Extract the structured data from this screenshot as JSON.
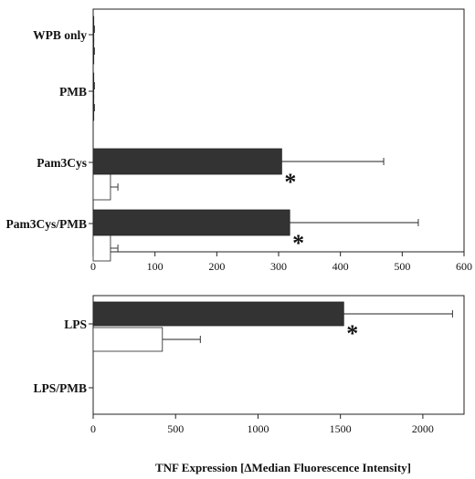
{
  "chart_data": [
    {
      "type": "bar",
      "orientation": "horizontal",
      "categories": [
        "WPB only",
        "PMB",
        "Pam3Cys",
        "Pam3Cys/PMB"
      ],
      "series": [
        {
          "color": "#333333",
          "values": [
            1,
            1,
            305,
            318
          ],
          "errors": [
            1,
            1,
            165,
            208
          ]
        },
        {
          "color": "#ffffff",
          "values": [
            1,
            1,
            28,
            28
          ],
          "errors": [
            1,
            1,
            12,
            12
          ]
        }
      ],
      "significant": [
        "",
        "",
        "*",
        "*"
      ],
      "xlim": [
        0,
        600
      ],
      "xticks": [
        0,
        100,
        200,
        300,
        400,
        500,
        600
      ]
    },
    {
      "type": "bar",
      "orientation": "horizontal",
      "categories": [
        "LPS",
        "LPS/PMB"
      ],
      "series": [
        {
          "color": "#333333",
          "values": [
            1520,
            0
          ],
          "errors": [
            660,
            0
          ]
        },
        {
          "color": "#ffffff",
          "values": [
            420,
            0
          ],
          "errors": [
            230,
            0
          ]
        }
      ],
      "significant": [
        "*",
        ""
      ],
      "xlim": [
        0,
        2250
      ],
      "xticks": [
        0,
        500,
        1000,
        1500,
        2000
      ]
    }
  ],
  "x_axis_title": "TNF Expression [∆Median Fluorescence Intensity]"
}
